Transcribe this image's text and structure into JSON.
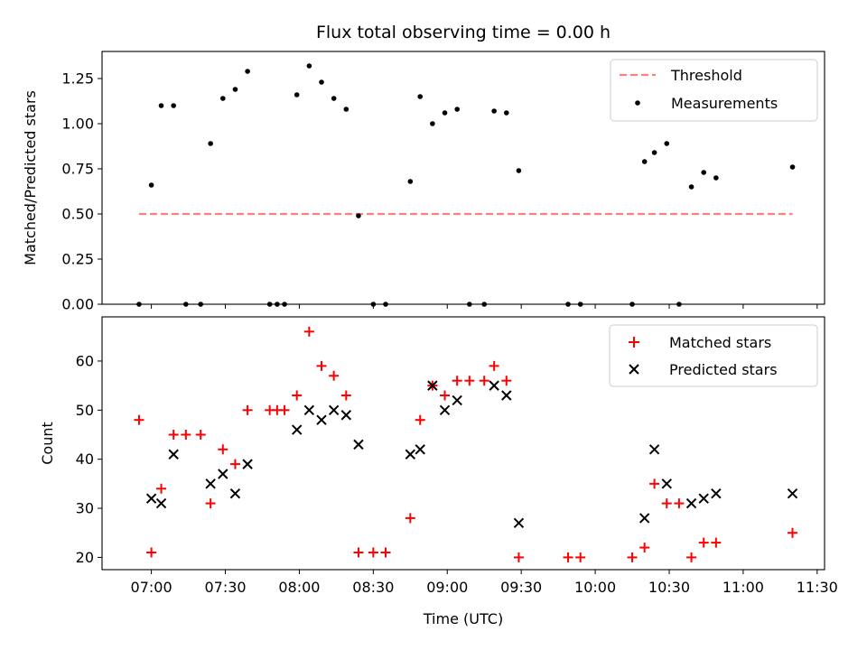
{
  "chart_data": [
    {
      "type": "scatter",
      "title": "Flux total observing time = 0.00 h",
      "xlabel": "",
      "ylabel": "Matched/Predicted stars",
      "ylim": [
        0,
        1.4
      ],
      "yticks": [
        "0.00",
        "0.25",
        "0.50",
        "0.75",
        "1.00",
        "1.25"
      ],
      "yticks_values": [
        0,
        0.25,
        0.5,
        0.75,
        1.0,
        1.25
      ],
      "legend_position": "top-right",
      "threshold": {
        "name": "Threshold",
        "value": 0.5,
        "x_start": "06:55",
        "x_end": "11:20",
        "color": "#ff7f7f"
      },
      "series": [
        {
          "name": "Measurements",
          "color": "#000000",
          "points": [
            [
              "06:55",
              0.0
            ],
            [
              "07:00",
              0.66
            ],
            [
              "07:04",
              1.1
            ],
            [
              "07:09",
              1.1
            ],
            [
              "07:14",
              0.0
            ],
            [
              "07:20",
              0.0
            ],
            [
              "07:24",
              0.89
            ],
            [
              "07:29",
              1.14
            ],
            [
              "07:34",
              1.19
            ],
            [
              "07:39",
              1.29
            ],
            [
              "07:48",
              0.0
            ],
            [
              "07:51",
              0.0
            ],
            [
              "07:54",
              0.0
            ],
            [
              "07:59",
              1.16
            ],
            [
              "08:04",
              1.32
            ],
            [
              "08:09",
              1.23
            ],
            [
              "08:14",
              1.14
            ],
            [
              "08:19",
              1.08
            ],
            [
              "08:24",
              0.49
            ],
            [
              "08:30",
              0.0
            ],
            [
              "08:35",
              0.0
            ],
            [
              "08:45",
              0.68
            ],
            [
              "08:49",
              1.15
            ],
            [
              "08:54",
              1.0
            ],
            [
              "08:59",
              1.06
            ],
            [
              "09:04",
              1.08
            ],
            [
              "09:09",
              0.0
            ],
            [
              "09:15",
              0.0
            ],
            [
              "09:19",
              1.07
            ],
            [
              "09:24",
              1.06
            ],
            [
              "09:29",
              0.74
            ],
            [
              "09:49",
              0.0
            ],
            [
              "09:54",
              0.0
            ],
            [
              "10:15",
              0.0
            ],
            [
              "10:20",
              0.79
            ],
            [
              "10:24",
              0.84
            ],
            [
              "10:29",
              0.89
            ],
            [
              "10:34",
              0.0
            ],
            [
              "10:39",
              0.65
            ],
            [
              "10:44",
              0.73
            ],
            [
              "10:49",
              0.7
            ],
            [
              "11:20",
              0.76
            ]
          ]
        }
      ]
    },
    {
      "type": "scatter",
      "title": "",
      "xlabel": "Time (UTC)",
      "ylabel": "Count",
      "ylim": [
        17.5,
        69
      ],
      "yticks": [
        "20",
        "30",
        "40",
        "50",
        "60"
      ],
      "yticks_values": [
        20,
        30,
        40,
        50,
        60
      ],
      "xticks": [
        "07:00",
        "07:30",
        "08:00",
        "08:30",
        "09:00",
        "09:30",
        "10:00",
        "10:30",
        "11:00",
        "11:30"
      ],
      "xlim": [
        "06:40",
        "11:33"
      ],
      "legend_position": "top-right",
      "series": [
        {
          "name": "Matched stars",
          "color": "#ff0000",
          "marker": "plus",
          "points": [
            [
              "06:55",
              48
            ],
            [
              "07:00",
              21
            ],
            [
              "07:04",
              34
            ],
            [
              "07:09",
              45
            ],
            [
              "07:14",
              45
            ],
            [
              "07:20",
              45
            ],
            [
              "07:24",
              31
            ],
            [
              "07:29",
              42
            ],
            [
              "07:34",
              39
            ],
            [
              "07:39",
              50
            ],
            [
              "07:48",
              50
            ],
            [
              "07:51",
              50
            ],
            [
              "07:54",
              50
            ],
            [
              "07:59",
              53
            ],
            [
              "08:04",
              66
            ],
            [
              "08:09",
              59
            ],
            [
              "08:14",
              57
            ],
            [
              "08:19",
              53
            ],
            [
              "08:24",
              21
            ],
            [
              "08:30",
              21
            ],
            [
              "08:35",
              21
            ],
            [
              "08:45",
              28
            ],
            [
              "08:49",
              48
            ],
            [
              "08:54",
              55
            ],
            [
              "08:59",
              53
            ],
            [
              "09:04",
              56
            ],
            [
              "09:09",
              56
            ],
            [
              "09:15",
              56
            ],
            [
              "09:19",
              59
            ],
            [
              "09:24",
              56
            ],
            [
              "09:29",
              20
            ],
            [
              "09:49",
              20
            ],
            [
              "09:54",
              20
            ],
            [
              "10:15",
              20
            ],
            [
              "10:20",
              22
            ],
            [
              "10:24",
              35
            ],
            [
              "10:29",
              31
            ],
            [
              "10:34",
              31
            ],
            [
              "10:39",
              20
            ],
            [
              "10:44",
              23
            ],
            [
              "10:49",
              23
            ],
            [
              "11:20",
              25
            ]
          ]
        },
        {
          "name": "Predicted stars",
          "color": "#000000",
          "marker": "x",
          "points": [
            [
              "07:00",
              32
            ],
            [
              "07:04",
              31
            ],
            [
              "07:09",
              41
            ],
            [
              "07:24",
              35
            ],
            [
              "07:29",
              37
            ],
            [
              "07:34",
              33
            ],
            [
              "07:39",
              39
            ],
            [
              "07:59",
              46
            ],
            [
              "08:04",
              50
            ],
            [
              "08:09",
              48
            ],
            [
              "08:14",
              50
            ],
            [
              "08:19",
              49
            ],
            [
              "08:24",
              43
            ],
            [
              "08:45",
              41
            ],
            [
              "08:49",
              42
            ],
            [
              "08:54",
              55
            ],
            [
              "08:59",
              50
            ],
            [
              "09:04",
              52
            ],
            [
              "09:19",
              55
            ],
            [
              "09:24",
              53
            ],
            [
              "09:29",
              27
            ],
            [
              "10:20",
              28
            ],
            [
              "10:24",
              42
            ],
            [
              "10:29",
              35
            ],
            [
              "10:39",
              31
            ],
            [
              "10:44",
              32
            ],
            [
              "10:49",
              33
            ],
            [
              "11:20",
              33
            ]
          ]
        }
      ]
    }
  ]
}
